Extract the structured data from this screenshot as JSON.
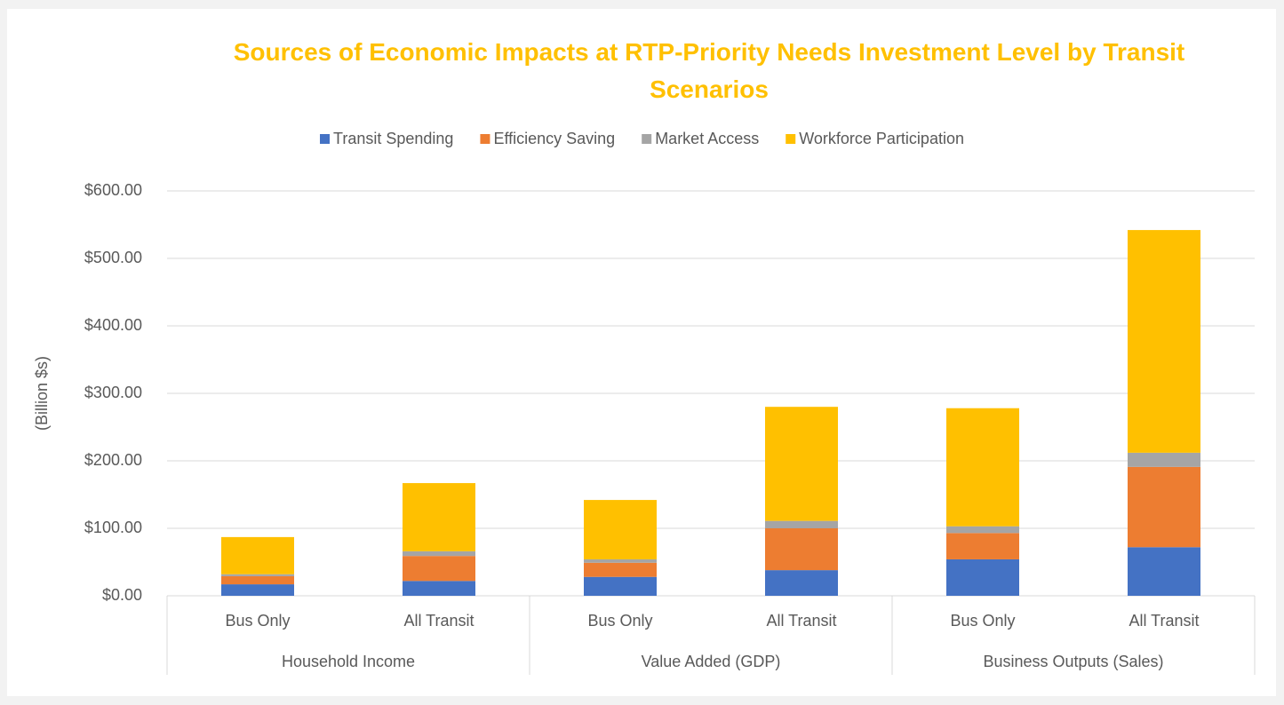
{
  "chart_data": {
    "type": "stacked_bar",
    "title": "Sources of Economic Impacts at RTP-Priority Needs Investment Level by Transit Scenarios",
    "ylabel": "(Billion $s)",
    "categories": [
      "Bus Only",
      "All Transit",
      "Bus Only",
      "All Transit",
      "Bus Only",
      "All Transit"
    ],
    "groups": [
      "Household Income",
      "Value Added (GDP)",
      "Business Outputs (Sales)"
    ],
    "series": [
      {
        "name": "Transit Spending",
        "color": "#4472c4",
        "values": [
          17,
          22,
          28,
          38,
          54,
          72
        ]
      },
      {
        "name": "Efficiency Saving",
        "color": "#ed7d31",
        "values": [
          12,
          37,
          21,
          62,
          39,
          119
        ]
      },
      {
        "name": "Market Access",
        "color": "#a5a5a5",
        "values": [
          3,
          7,
          5,
          11,
          10,
          21
        ]
      },
      {
        "name": "Workforce Participation",
        "color": "#ffc000",
        "values": [
          55,
          101,
          88,
          169,
          175,
          330
        ]
      }
    ],
    "ylim": [
      0,
      600
    ],
    "yticks": [
      {
        "value": 0,
        "label": "$0.00"
      },
      {
        "value": 100,
        "label": "$100.00"
      },
      {
        "value": 200,
        "label": "$200.00"
      },
      {
        "value": 300,
        "label": "$300.00"
      },
      {
        "value": 400,
        "label": "$400.00"
      },
      {
        "value": 500,
        "label": "$500.00"
      },
      {
        "value": 600,
        "label": "$600.00"
      }
    ],
    "grid": true,
    "legend": "top"
  }
}
